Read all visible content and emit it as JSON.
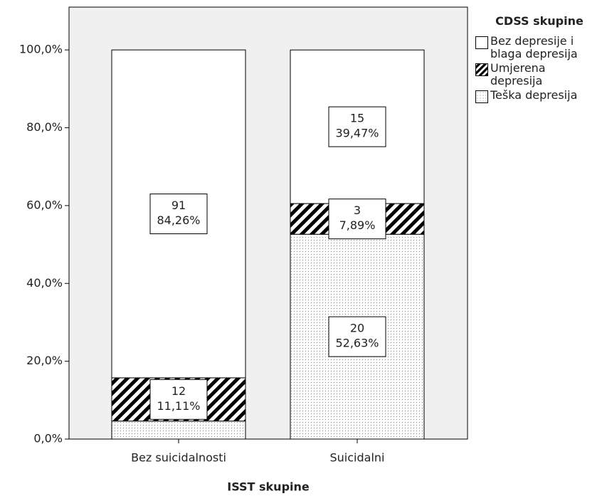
{
  "chart_data": {
    "type": "stacked_bar",
    "x_label": "ISST skupine",
    "legend_title": "CDSS skupine",
    "categories": [
      "Bez suicidalnosti",
      "Suicidalni"
    ],
    "series": [
      {
        "name": "Teška depresija",
        "color": "#ffffff",
        "pattern": "dots",
        "values": [
          4.63,
          52.63
        ],
        "counts": [
          null,
          20
        ],
        "value_labels": [
          null,
          "52,63%"
        ]
      },
      {
        "name": "Umjerena depresija",
        "color": "#ffffff",
        "pattern": "hatch",
        "values": [
          11.11,
          7.89
        ],
        "counts": [
          12,
          3
        ],
        "value_labels": [
          "11,11%",
          "7,89%"
        ]
      },
      {
        "name": "Bez depresije i blaga depresija",
        "color": "#ffffff",
        "pattern": "none",
        "values": [
          84.26,
          39.47
        ],
        "counts": [
          91,
          15
        ],
        "value_labels": [
          "84,26%",
          "39,47%"
        ]
      }
    ],
    "ylim": [
      0,
      111
    ],
    "yticks": [
      {
        "value": 0,
        "label": "0,0%"
      },
      {
        "value": 20,
        "label": "20,0%"
      },
      {
        "value": 40,
        "label": "40,0%"
      },
      {
        "value": 60,
        "label": "60,0%"
      },
      {
        "value": 80,
        "label": "80,0%"
      },
      {
        "value": 100,
        "label": "100,0%"
      }
    ],
    "legend_position": "right"
  }
}
